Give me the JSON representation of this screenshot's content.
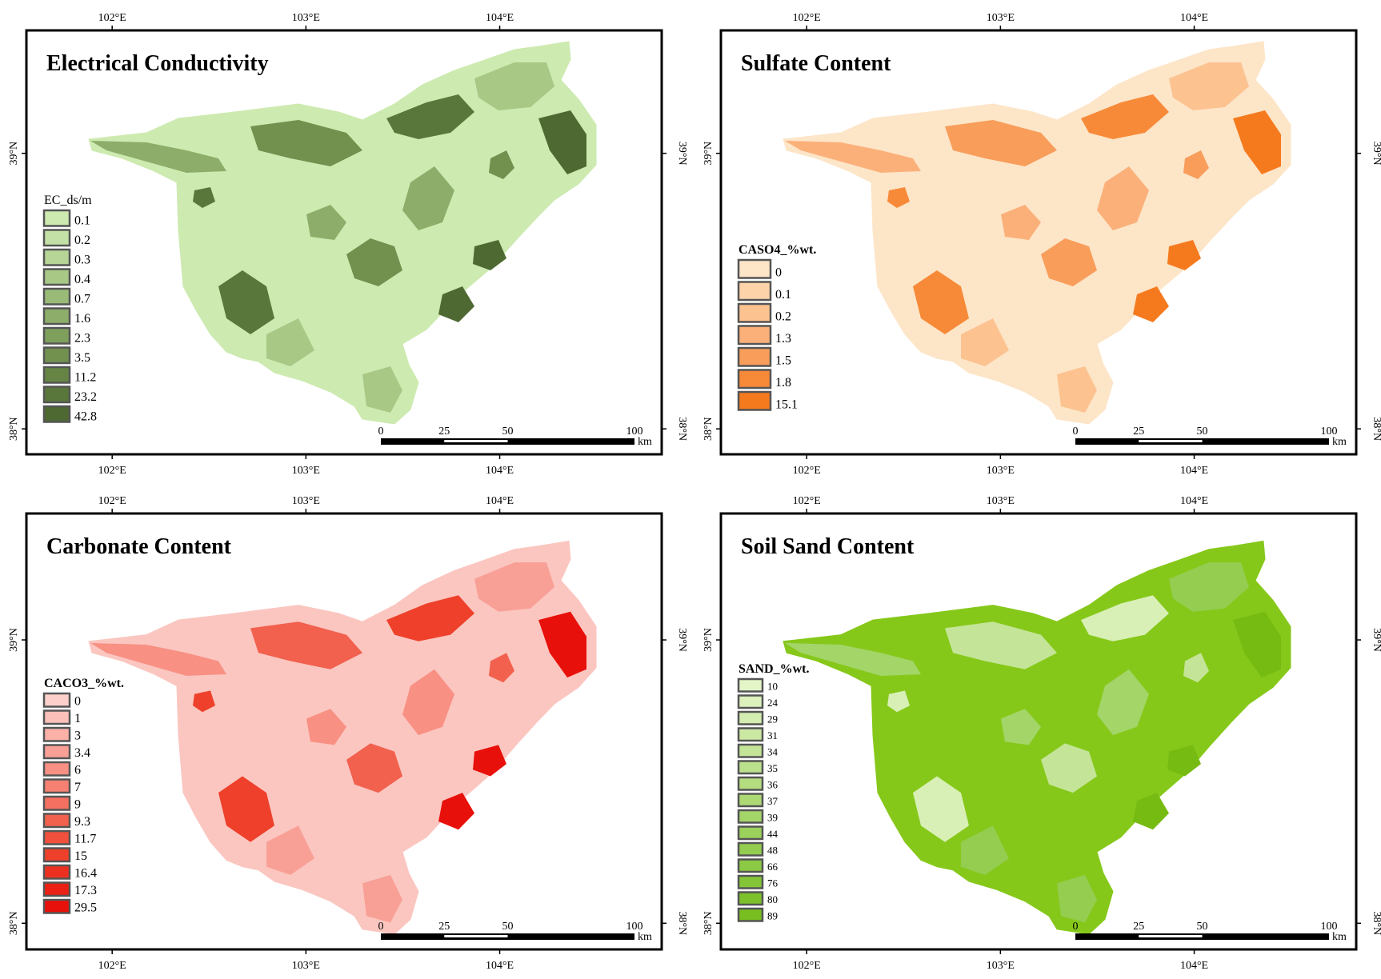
{
  "panels": [
    {
      "id": "ec",
      "title": "Electrical Conductivity",
      "legend_title": "EC_ds/m",
      "legend_title_bold": false,
      "legend_values": [
        "0.1",
        "0.2",
        "0.3",
        "0.4",
        "0.7",
        "1.6",
        "2.3",
        "3.5",
        "11.2",
        "23.2",
        "42.8"
      ],
      "legend_colors": [
        "#cdeab0",
        "#c3e1a6",
        "#b6d596",
        "#a8c886",
        "#9abb78",
        "#8dae6a",
        "#7f9f5c",
        "#72914f",
        "#668545",
        "#5a773b",
        "#4e6a32"
      ],
      "base_color": "#cdeab0",
      "patch_colors": [
        "#8dae6a",
        "#72914f",
        "#5a773b",
        "#a8c886",
        "#4e6a32"
      ]
    },
    {
      "id": "sulfate",
      "title": "Sulfate Content",
      "legend_title": "CASO4_%wt.",
      "legend_title_bold": true,
      "legend_values": [
        "0",
        "0.1",
        "0.2",
        "1.3",
        "1.5",
        "1.8",
        "15.1"
      ],
      "legend_colors": [
        "#fde5c8",
        "#fdd4aa",
        "#fcc390",
        "#fbb07a",
        "#f99d5a",
        "#f78a38",
        "#f57a1e"
      ],
      "base_color": "#fde5c8",
      "patch_colors": [
        "#fbb07a",
        "#f99d5a",
        "#f78a38",
        "#fcc390",
        "#f57a1e"
      ]
    },
    {
      "id": "carbonate",
      "title": "Carbonate Content",
      "legend_title": "CACO3_%wt.",
      "legend_title_bold": true,
      "legend_values": [
        "0",
        "1",
        "3",
        "3.4",
        "6",
        "7",
        "9",
        "9.3",
        "11.7",
        "15",
        "16.4",
        "17.3",
        "29.5"
      ],
      "legend_colors": [
        "#fdd0cc",
        "#fcc0ba",
        "#fbb0a8",
        "#f9a096",
        "#f89084",
        "#f68072",
        "#f47060",
        "#f2604e",
        "#f0503c",
        "#ee402a",
        "#ec3020",
        "#ea2015",
        "#e8100a"
      ],
      "base_color": "#fbc6c0",
      "patch_colors": [
        "#f89084",
        "#f2604e",
        "#ee402a",
        "#f9a096",
        "#e8100a"
      ]
    },
    {
      "id": "sand",
      "title": "Soil Sand Content",
      "legend_title": "SAND_%wt.",
      "legend_title_bold": true,
      "legend_values": [
        "10",
        "24",
        "29",
        "31",
        "34",
        "35",
        "36",
        "37",
        "39",
        "44",
        "48",
        "66",
        "76",
        "80",
        "89"
      ],
      "legend_colors": [
        "#e4f5c8",
        "#dcf1bc",
        "#d4edb0",
        "#cce9a4",
        "#c4e598",
        "#bce18c",
        "#b4dd80",
        "#acd974",
        "#a4d568",
        "#9cd15c",
        "#94cd50",
        "#8cc944",
        "#84c538",
        "#7cc12c",
        "#78be20"
      ],
      "base_color": "#86c81a",
      "patch_colors": [
        "#a4d568",
        "#c4e598",
        "#d8f0b6",
        "#94cd50",
        "#76bb12"
      ]
    }
  ],
  "ticks": {
    "lon_labels": [
      "102°E",
      "103°E",
      "104°E"
    ],
    "lat_labels": [
      "39°N",
      "38°N"
    ]
  },
  "scalebar": {
    "labels": [
      "0",
      "25",
      "50",
      "100"
    ],
    "unit": "km"
  }
}
